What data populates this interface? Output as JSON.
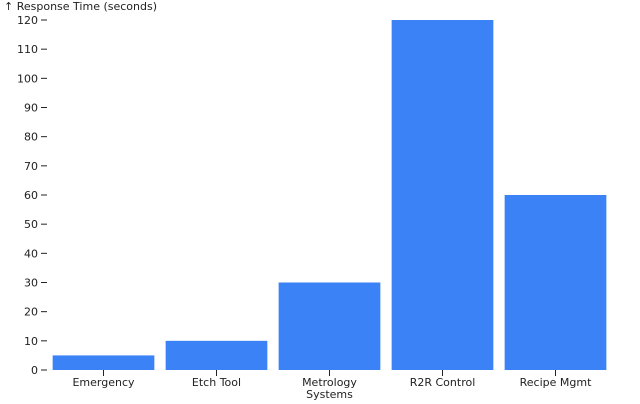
{
  "chart_data": {
    "type": "bar",
    "ylabel": "↑ Response Time (seconds)",
    "categories": [
      [
        "Emergency"
      ],
      [
        "Etch Tool"
      ],
      [
        "Metrology",
        "Systems"
      ],
      [
        "R2R Control"
      ],
      [
        "Recipe Mgmt"
      ]
    ],
    "values": [
      5,
      10,
      30,
      120,
      60
    ],
    "ylim": [
      0,
      120
    ],
    "yticks": [
      0,
      10,
      20,
      30,
      40,
      50,
      60,
      70,
      80,
      90,
      100,
      110,
      120
    ],
    "bar_color": "#3b82f6",
    "grid": false
  }
}
